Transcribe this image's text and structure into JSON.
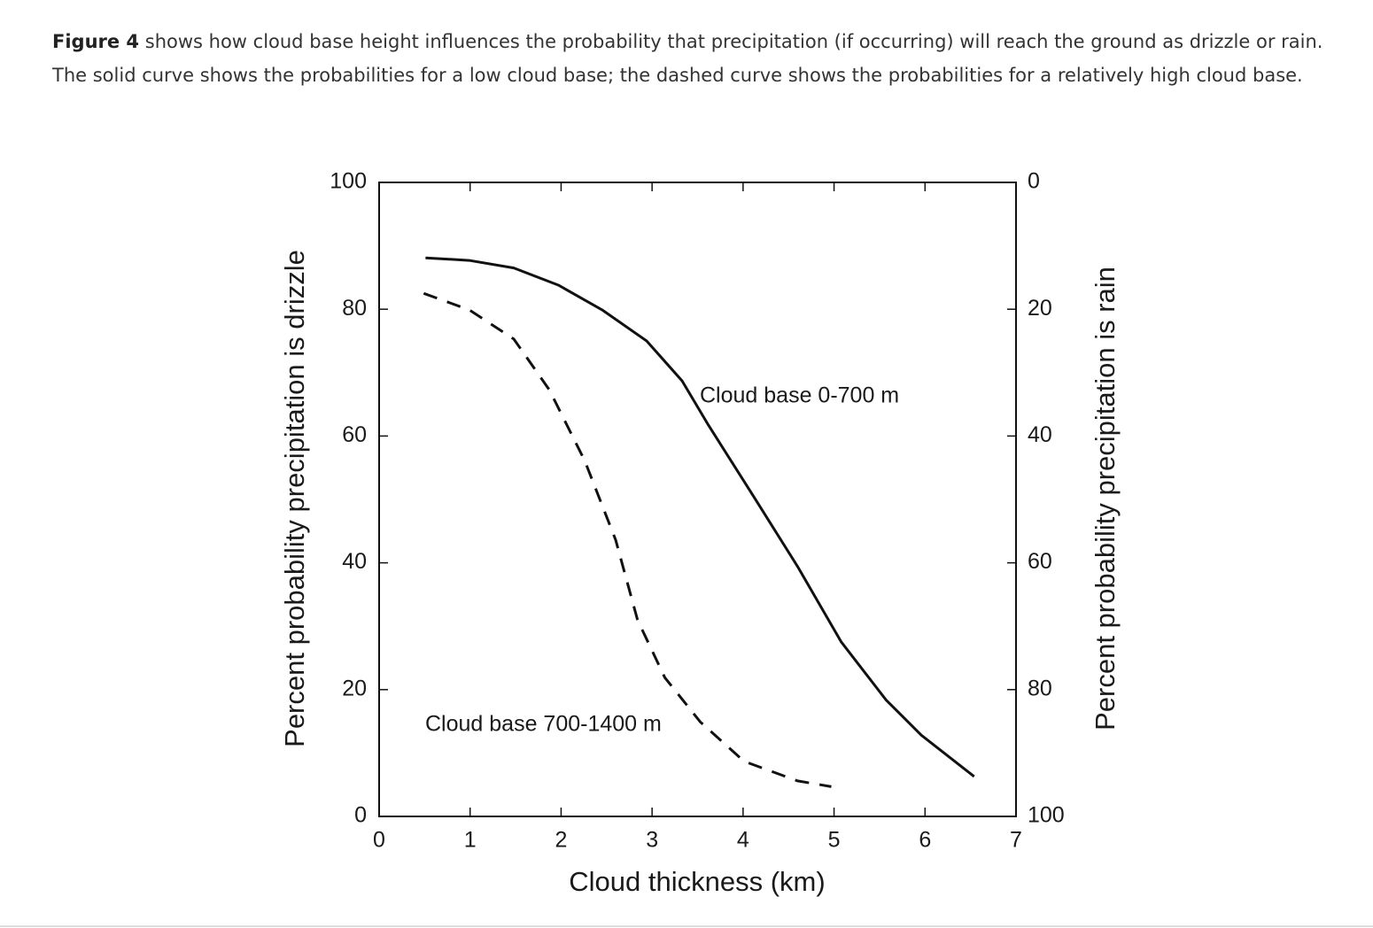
{
  "caption": {
    "label": "Figure 4",
    "text": "shows how cloud base height influences the probability that precipitation (if occurring) will reach the ground as drizzle or rain. The solid curve shows the probabilities for a low cloud base; the dashed curve shows the probabilities for a relatively high cloud base."
  },
  "chart_data": {
    "type": "line",
    "x_label": "Cloud thickness (km)",
    "y_label": "Percent probability precipitation is drizzle",
    "y2_label": "Percent probability precipitation is rain",
    "xlim": [
      0,
      7
    ],
    "xticks": [
      0,
      1,
      2,
      3,
      4,
      5,
      6,
      7
    ],
    "ylim": [
      0,
      100
    ],
    "yticks": [
      0,
      20,
      40,
      60,
      80,
      100
    ],
    "y2lim": [
      100,
      0
    ],
    "y2ticks": [
      0,
      20,
      40,
      60,
      80,
      100
    ],
    "grid": false,
    "series": [
      {
        "name": "Cloud base 0-700 m",
        "color": "#111111",
        "style": "solid",
        "x": [
          0.51,
          0.99,
          1.48,
          1.97,
          2.45,
          2.94,
          3.33,
          3.62,
          4.11,
          4.6,
          5.08,
          5.57,
          5.96,
          6.54
        ],
        "values": [
          88.1,
          87.7,
          86.5,
          83.8,
          79.9,
          75.0,
          68.7,
          61.7,
          50.6,
          39.4,
          27.5,
          18.4,
          12.8,
          6.3
        ]
      },
      {
        "name": "Cloud base 700-1400 m",
        "color": "#111111",
        "style": "dashed",
        "x": [
          0.49,
          0.99,
          1.48,
          1.87,
          2.26,
          2.6,
          2.84,
          3.14,
          3.53,
          4.01,
          4.6,
          4.97
        ],
        "values": [
          82.5,
          79.9,
          75.3,
          67.3,
          56.1,
          43.6,
          31.0,
          21.9,
          14.9,
          8.7,
          5.6,
          4.7
        ]
      }
    ]
  }
}
